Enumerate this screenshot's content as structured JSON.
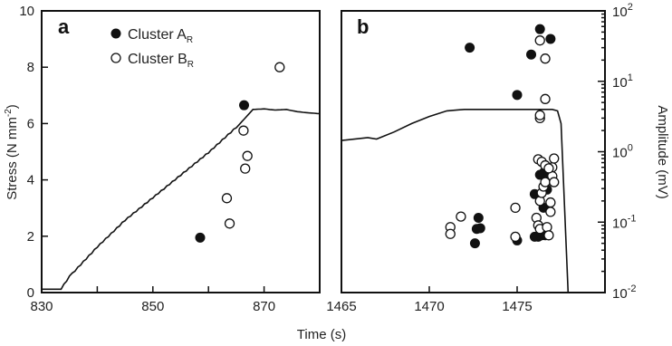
{
  "chart_data": [
    {
      "type": "scatter",
      "panel_label": "a",
      "xlabel": "Time (s)",
      "ylabel": "Stress (N mm",
      "ylabel_sup": "-2",
      "ylabel_close": ")",
      "xlim": [
        830,
        880
      ],
      "ylim": [
        0,
        10
      ],
      "x_ticks": [
        830,
        850,
        870
      ],
      "x_minor": [
        840,
        860
      ],
      "y_ticks": [
        0,
        2,
        4,
        6,
        8,
        10
      ],
      "legend": {
        "position": "top-center",
        "entries": [
          {
            "text": "Cluster A",
            "sub": "R",
            "marker": "filled"
          },
          {
            "text": "Cluster B",
            "sub": "R",
            "marker": "open"
          }
        ]
      },
      "stress_curve": {
        "x": [
          830,
          833.5,
          835,
          840,
          845,
          850,
          855,
          860,
          865,
          868,
          870,
          872,
          874,
          876,
          878,
          880
        ],
        "y": [
          0.12,
          0.12,
          0.55,
          1.6,
          2.55,
          3.35,
          4.15,
          4.95,
          5.85,
          6.5,
          6.52,
          6.48,
          6.5,
          6.42,
          6.38,
          6.35
        ]
      },
      "series": [
        {
          "name": "Cluster A",
          "marker": "filled",
          "points": [
            [
              858.5,
              1.95
            ],
            [
              866.4,
              6.65
            ]
          ]
        },
        {
          "name": "Cluster B",
          "marker": "open",
          "points": [
            [
              863.3,
              3.35
            ],
            [
              863.8,
              2.45
            ],
            [
              866.3,
              5.75
            ],
            [
              866.6,
              4.4
            ],
            [
              867.0,
              4.85
            ],
            [
              872.8,
              8.0
            ]
          ]
        }
      ]
    },
    {
      "type": "scatter",
      "panel_label": "b",
      "xlabel": "Time (s)",
      "ylabel": "Amplitude (mV)",
      "xlim": [
        1465,
        1480
      ],
      "y_scale": "log",
      "ylim": [
        0.01,
        100
      ],
      "x_ticks": [
        1465,
        1470,
        1475
      ],
      "y_ticks": [
        {
          "base": "10",
          "exp": "2",
          "value": 100
        },
        {
          "base": "10",
          "exp": "1",
          "value": 10
        },
        {
          "base": "10",
          "exp": "0",
          "value": 1
        },
        {
          "base": "10",
          "exp": "-1",
          "value": 0.1
        },
        {
          "base": "10",
          "exp": "-2",
          "value": 0.01
        }
      ],
      "stress_curve": {
        "x": [
          1465,
          1466.5,
          1467,
          1468,
          1469,
          1470,
          1471,
          1472,
          1473,
          1474,
          1475,
          1476,
          1477,
          1477.3,
          1477.5,
          1477.9,
          1480
        ],
        "y": [
          5.4,
          5.5,
          5.45,
          5.7,
          6.0,
          6.25,
          6.45,
          6.5,
          6.5,
          6.5,
          6.5,
          6.5,
          6.5,
          6.45,
          6.0,
          0.0,
          0.0
        ]
      },
      "series": [
        {
          "name": "Cluster A",
          "marker": "filled",
          "points": [
            [
              1472.3,
              30
            ],
            [
              1472.8,
              0.115
            ],
            [
              1472.7,
              0.08
            ],
            [
              1472.6,
              0.05
            ],
            [
              1472.9,
              0.082
            ],
            [
              1475.0,
              6.4
            ],
            [
              1475.0,
              0.055
            ],
            [
              1475.8,
              24
            ],
            [
              1476.0,
              0.062
            ],
            [
              1476.2,
              0.062
            ],
            [
              1476.3,
              0.065
            ],
            [
              1476.4,
              0.065
            ],
            [
              1476.6,
              0.065
            ],
            [
              1476.3,
              0.47
            ],
            [
              1476.5,
              0.5
            ],
            [
              1476.7,
              0.29
            ],
            [
              1476.8,
              0.48
            ],
            [
              1476.9,
              0.4
            ],
            [
              1476.0,
              0.25
            ],
            [
              1476.5,
              0.16
            ],
            [
              1476.3,
              55
            ],
            [
              1476.9,
              40
            ]
          ]
        },
        {
          "name": "Cluster B",
          "marker": "open",
          "points": [
            [
              1471.2,
              0.085
            ],
            [
              1471.2,
              0.068
            ],
            [
              1471.8,
              0.12
            ],
            [
              1474.9,
              0.16
            ],
            [
              1474.9,
              0.062
            ],
            [
              1476.1,
              0.115
            ],
            [
              1476.2,
              0.09
            ],
            [
              1476.3,
              0.08
            ],
            [
              1476.3,
              0.2
            ],
            [
              1476.4,
              0.26
            ],
            [
              1476.5,
              0.32
            ],
            [
              1476.6,
              0.37
            ],
            [
              1476.7,
              0.085
            ],
            [
              1476.8,
              0.065
            ],
            [
              1476.9,
              0.19
            ],
            [
              1476.9,
              0.14
            ],
            [
              1477.0,
              0.6
            ],
            [
              1477.0,
              0.45
            ],
            [
              1477.1,
              0.37
            ],
            [
              1476.2,
              0.78
            ],
            [
              1476.4,
              0.72
            ],
            [
              1476.6,
              0.64
            ],
            [
              1476.8,
              0.58
            ],
            [
              1477.1,
              0.8
            ],
            [
              1476.3,
              3.0
            ],
            [
              1476.3,
              3.3
            ],
            [
              1476.6,
              5.6
            ],
            [
              1476.6,
              21
            ],
            [
              1476.3,
              38
            ]
          ]
        }
      ]
    }
  ]
}
